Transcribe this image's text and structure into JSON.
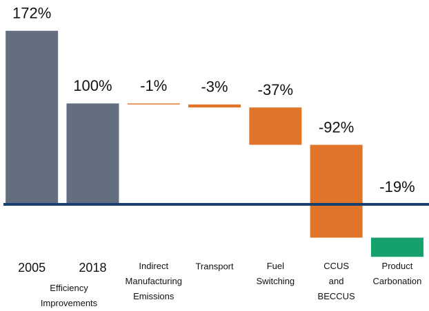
{
  "chart_data": {
    "type": "waterfall",
    "categories": [
      "2005",
      "2018",
      "Indirect Manufacturing Emissions",
      "Transport",
      "Fuel Switching",
      "CCUS and BECCUS",
      "Product Carbonation"
    ],
    "values": [
      172,
      100,
      -1,
      -3,
      -37,
      -92,
      -19
    ],
    "value_labels": [
      "172%",
      "100%",
      "-1%",
      "-3%",
      "-37%",
      "-92%",
      "-19%"
    ],
    "totals": [
      true,
      true,
      false,
      false,
      false,
      false,
      false
    ],
    "colors": [
      "#636f7e",
      "#636f7e",
      "#e07428",
      "#e07428",
      "#e07428",
      "#e07428",
      "#16a06c"
    ],
    "annotation": "Efficiency Improvements",
    "ylim": [
      -60,
      180
    ]
  }
}
